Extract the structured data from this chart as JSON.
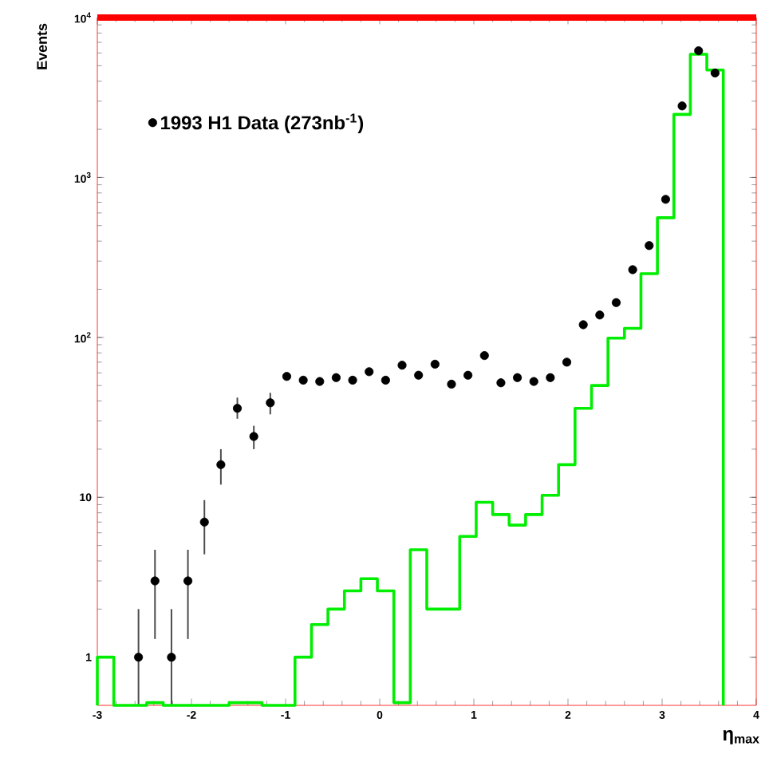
{
  "chart_data": {
    "type": "scatter",
    "xlabel": "η$_{max}$",
    "ylabel": "Events",
    "log": "y",
    "legend": "top left",
    "marker": "circle",
    "xlim": [
      -3,
      4
    ],
    "ylim": [
      0.5,
      10000
    ],
    "xticks": [
      -3,
      -2,
      -1,
      0,
      1,
      2,
      3,
      4
    ],
    "yticks": [
      1,
      10,
      {
        "value": 100,
        "label": "10$^{2}$"
      },
      {
        "value": 1000,
        "label": "10$^{3}$"
      },
      {
        "value": 10000,
        "label": "10$^{4}$"
      }
    ],
    "series": [
      {
        "type": "scatter",
        "name": "1993 H1 Data (273nb$^{-1}$)",
        "color": "#000000",
        "x": [
          -2.5625,
          -2.3875,
          -2.2125,
          -2.0375,
          -1.8625,
          -1.6875,
          -1.5125,
          -1.3375,
          -1.1625,
          -0.9875,
          -0.8125,
          -0.6375,
          -0.4625,
          -0.2875,
          -0.1125,
          0.0625,
          0.2375,
          0.4125,
          0.5875,
          0.7625,
          0.9375,
          1.1125,
          1.2875,
          1.4625,
          1.6375,
          1.8125,
          1.9875,
          2.1625,
          2.3375,
          2.5125,
          2.6875,
          2.8625,
          3.0375,
          3.2125,
          3.3875,
          3.5625
        ],
        "values": [
          1,
          3,
          1,
          3,
          7,
          16,
          36,
          24,
          39,
          57,
          54,
          53,
          56,
          54,
          61,
          54,
          67,
          58,
          68,
          51,
          58,
          77,
          52,
          56,
          53,
          56,
          70,
          120,
          138,
          165,
          265,
          375,
          730,
          2800,
          6200,
          4500
        ],
        "errors": [
          [
            0.5,
            2
          ],
          [
            1.3,
            4.7
          ],
          [
            0.5,
            2
          ],
          [
            1.3,
            4.7
          ],
          [
            4.4,
            9.6
          ],
          [
            12,
            20
          ],
          [
            31,
            42
          ],
          [
            20,
            28
          ],
          [
            33,
            45
          ],
          null,
          null,
          null,
          null,
          null,
          null,
          null,
          null,
          null,
          null,
          null,
          null,
          null,
          null,
          null,
          null,
          null,
          null,
          null,
          null,
          null,
          null,
          null,
          null,
          null,
          null,
          null
        ]
      },
      {
        "type": "histogram",
        "color": "#00ee00",
        "bins": [
          -3,
          -2.825,
          -2.65,
          -2.475,
          -2.3,
          -2.125,
          -1.95,
          -1.775,
          -1.6,
          -1.425,
          -1.25,
          -1.075,
          -0.9,
          -0.725,
          -0.55,
          -0.375,
          -0.2,
          -0.025,
          0.15,
          0.325,
          0.5,
          0.675,
          0.85,
          1.025,
          1.2,
          1.375,
          1.55,
          1.725,
          1.9,
          2.075,
          2.25,
          2.425,
          2.6,
          2.775,
          2.95,
          3.125,
          3.3,
          3.475,
          3.65
        ],
        "values": [
          1,
          null,
          null,
          0.52,
          null,
          null,
          null,
          null,
          0.52,
          0.52,
          null,
          null,
          1,
          1.6,
          2,
          2.6,
          3.1,
          2.6,
          0.52,
          4.7,
          2,
          2,
          5.7,
          9.3,
          7.8,
          6.7,
          7.8,
          10.3,
          16,
          36,
          50,
          99,
          114,
          250,
          560,
          2480,
          5900,
          4700
        ]
      }
    ]
  }
}
